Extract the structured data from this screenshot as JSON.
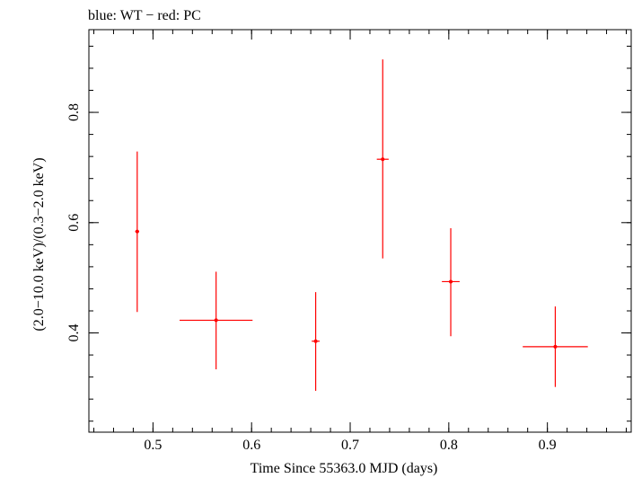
{
  "chart_data": {
    "type": "scatter",
    "title": "blue: WT − red: PC",
    "xlabel": "Time Since 55363.0 MJD (days)",
    "ylabel": "(2.0−10.0 keV)/(0.3−2.0 keV)",
    "xlim": [
      0.435,
      0.985
    ],
    "ylim": [
      0.22,
      0.95
    ],
    "x_ticks": [
      {
        "value": 0.5,
        "label": "0.5"
      },
      {
        "value": 0.6,
        "label": "0.6"
      },
      {
        "value": 0.7,
        "label": "0.7"
      },
      {
        "value": 0.8,
        "label": "0.8"
      },
      {
        "value": 0.9,
        "label": "0.9"
      }
    ],
    "y_ticks": [
      {
        "value": 0.4,
        "label": "0.4"
      },
      {
        "value": 0.6,
        "label": "0.6"
      },
      {
        "value": 0.8,
        "label": "0.8"
      }
    ],
    "series": [
      {
        "color": "#ff0000",
        "points": [
          {
            "x": 0.484,
            "xerr": 0.002,
            "y": 0.584,
            "ylo": 0.438,
            "yhi": 0.729
          },
          {
            "x": 0.564,
            "xerr": 0.037,
            "y": 0.423,
            "ylo": 0.334,
            "yhi": 0.511
          },
          {
            "x": 0.665,
            "xerr": 0.004,
            "y": 0.385,
            "ylo": 0.295,
            "yhi": 0.474
          },
          {
            "x": 0.733,
            "xerr": 0.006,
            "y": 0.715,
            "ylo": 0.535,
            "yhi": 0.896
          },
          {
            "x": 0.802,
            "xerr": 0.009,
            "y": 0.493,
            "ylo": 0.394,
            "yhi": 0.59
          },
          {
            "x": 0.908,
            "xerr": 0.033,
            "y": 0.375,
            "ylo": 0.302,
            "yhi": 0.448
          }
        ]
      }
    ]
  }
}
